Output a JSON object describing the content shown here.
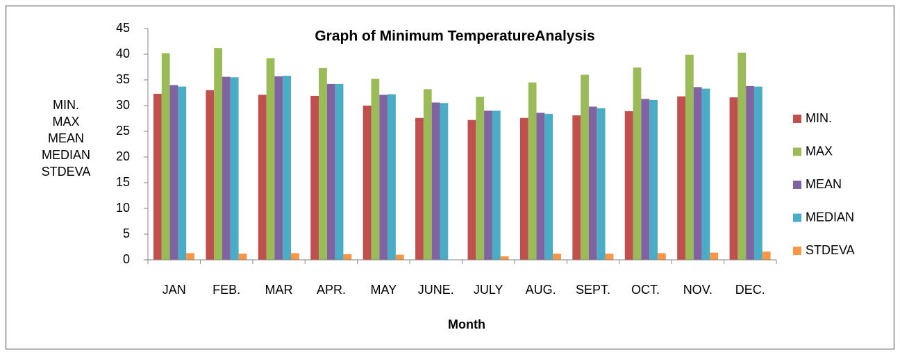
{
  "chart_data": {
    "type": "bar",
    "title": "Graph of Minimum TemperatureAnalysis",
    "x_label": "Month",
    "y_label": [
      "MIN.",
      "MAX",
      "MEAN",
      "MEDIAN",
      "STDEVA"
    ],
    "categories": [
      "JAN",
      "FEB.",
      "MAR",
      "APR.",
      "MAY",
      "JUNE.",
      "JULY",
      "AUG.",
      "SEPT.",
      "OCT.",
      "NOV.",
      "DEC."
    ],
    "series": [
      {
        "name": "MIN.",
        "color": "#c0504d",
        "values": [
          32.3,
          33.0,
          32.1,
          31.9,
          30.0,
          27.6,
          27.2,
          27.6,
          28.1,
          28.9,
          31.8,
          31.6
        ]
      },
      {
        "name": "MAX",
        "color": "#9bbb59",
        "values": [
          40.2,
          41.2,
          39.2,
          37.3,
          35.2,
          33.2,
          31.7,
          34.5,
          36.0,
          37.4,
          39.9,
          40.3
        ]
      },
      {
        "name": "MEAN",
        "color": "#8064a2",
        "values": [
          34.0,
          35.6,
          35.7,
          34.2,
          32.1,
          30.6,
          29.0,
          28.6,
          29.8,
          31.3,
          33.6,
          33.8
        ]
      },
      {
        "name": "MEDIAN",
        "color": "#4bacc6",
        "values": [
          33.7,
          35.5,
          35.8,
          34.2,
          32.2,
          30.5,
          29.0,
          28.4,
          29.5,
          31.1,
          33.3,
          33.7
        ]
      },
      {
        "name": "STDEVA",
        "color": "#f79646",
        "values": [
          1.3,
          1.2,
          1.3,
          1.1,
          1.0,
          0,
          0.7,
          1.2,
          1.2,
          1.3,
          1.4,
          1.6
        ]
      }
    ],
    "ylim": [
      0,
      45
    ],
    "yticks": [
      0,
      5,
      10,
      15,
      20,
      25,
      30,
      35,
      40,
      45
    ],
    "legend": "right"
  }
}
